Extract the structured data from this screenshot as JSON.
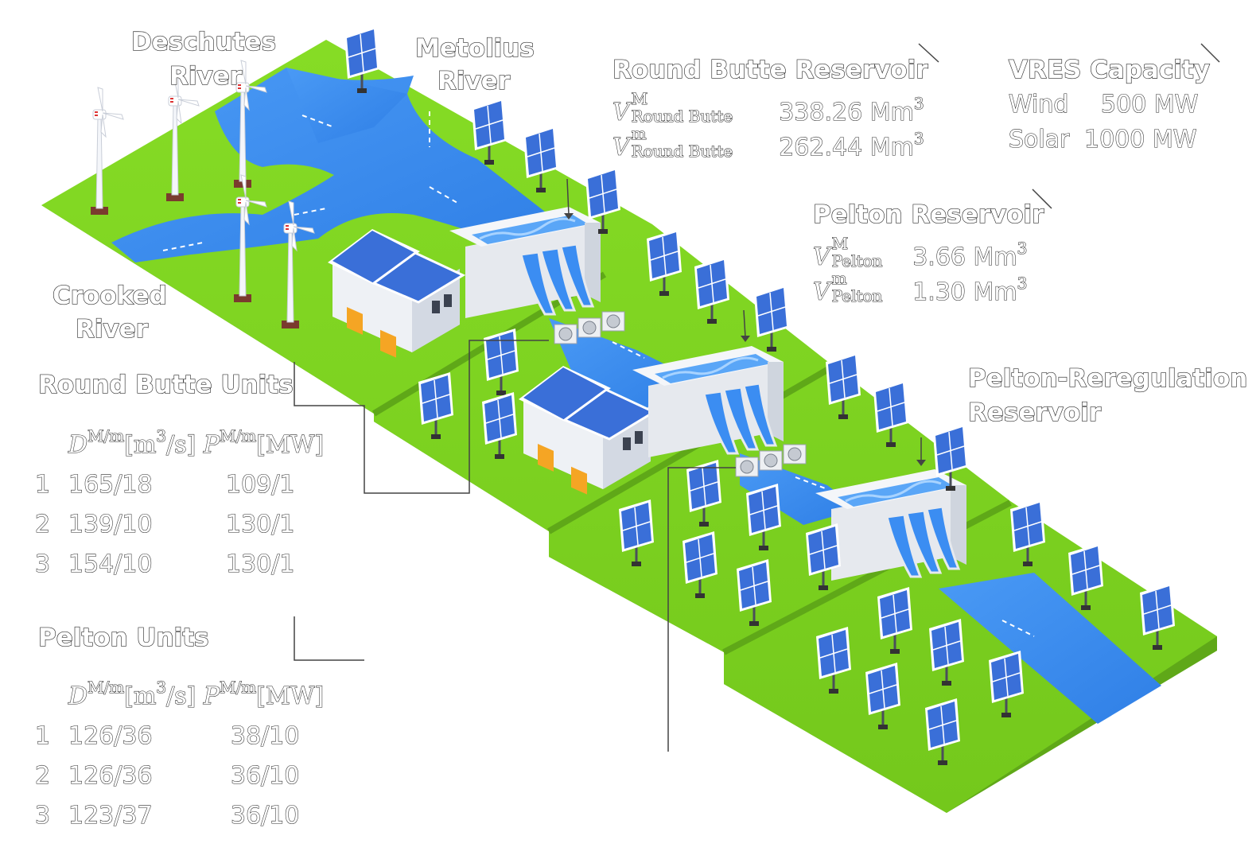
{
  "labels": {
    "deschutes": [
      "Deschutes",
      "River"
    ],
    "metolius": [
      "Metolius",
      "River"
    ],
    "crooked": [
      "Crooked",
      "River"
    ],
    "pelton_rereg": [
      "Pelton-Reregulation",
      "Reservoir"
    ]
  },
  "round_butte_reservoir": {
    "title": "Round Butte Reservoir",
    "vmax": {
      "symbol": "V",
      "sup": "M",
      "sub": "Round Butte",
      "value": "338.26 Mm",
      "unit_exp": "3"
    },
    "vmin": {
      "symbol": "V",
      "sup": "m",
      "sub": "Round Butte",
      "value": "262.44 Mm",
      "unit_exp": "3"
    }
  },
  "pelton_reservoir": {
    "title": "Pelton Reservoir",
    "vmax": {
      "symbol": "V",
      "sup": "M",
      "sub": "Pelton",
      "value": "3.66 Mm",
      "unit_exp": "3"
    },
    "vmin": {
      "symbol": "V",
      "sup": "m",
      "sub": "Pelton",
      "value": "1.30 Mm",
      "unit_exp": "3"
    }
  },
  "vres": {
    "title": "VRES Capacity",
    "rows": [
      {
        "name": "Wind",
        "value": "500 MW"
      },
      {
        "name": "Solar",
        "value": "1000 MW"
      }
    ]
  },
  "round_butte_units": {
    "title": "Round Butte Units",
    "header": {
      "d": "D",
      "d_sup": "M/m",
      "d_unit": "[m",
      "d_unit_exp": "3",
      "d_unit_end": "/s]",
      "p": "P",
      "p_sup": "M/m",
      "p_unit": "[MW]"
    },
    "rows": [
      {
        "id": "1",
        "discharge": "165/18",
        "power": "109/1"
      },
      {
        "id": "2",
        "discharge": "139/10",
        "power": "130/1"
      },
      {
        "id": "3",
        "discharge": "154/10",
        "power": "130/1"
      }
    ]
  },
  "pelton_units": {
    "title": "Pelton Units",
    "header": {
      "d": "D",
      "d_sup": "M/m",
      "d_unit": "[m",
      "d_unit_exp": "3",
      "d_unit_end": "/s]",
      "p": "P",
      "p_sup": "M/m",
      "p_unit": "[MW]"
    },
    "rows": [
      {
        "id": "1",
        "discharge": "126/36",
        "power": "38/10"
      },
      {
        "id": "2",
        "discharge": "126/36",
        "power": "36/10"
      },
      {
        "id": "3",
        "discharge": "123/37",
        "power": "36/10"
      }
    ]
  },
  "colors": {
    "grass": "#7ed321",
    "grass_side": "#5fa818",
    "water": "#3b8df2",
    "water_light": "#8cc4ff",
    "panel": "#3a6fd8",
    "dam": "#e6e9ee",
    "building": "#dfe3ea",
    "door": "#f5a524"
  },
  "icons": [
    "wind-turbine-icon",
    "solar-panel-icon",
    "dam-icon",
    "power-house-icon"
  ]
}
